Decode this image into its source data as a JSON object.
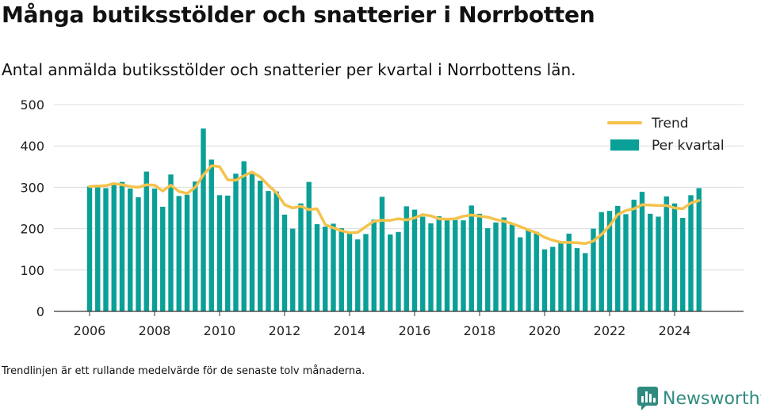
{
  "header": {
    "title": "Många butiksstölder och snatterier i Norrbotten",
    "subtitle": "Antal anmälda butiksstölder och snatterier per kvartal i Norrbottens län."
  },
  "footer": {
    "note": "Trendlinjen är ett rullande medelvärde för de senaste tolv månaderna.",
    "brand": "Newsworthy"
  },
  "colors": {
    "bars": "#0aa098",
    "trend": "#f5c24c",
    "grid": "#dcdcdc",
    "axis": "#333333",
    "brand": "#2f8b80"
  },
  "chart_data": {
    "type": "bar",
    "x_start": "2006 Q1",
    "frequency": "quarterly",
    "x_ticks": [
      "2006",
      "2008",
      "2010",
      "2012",
      "2014",
      "2016",
      "2018",
      "2020",
      "2022",
      "2024"
    ],
    "ylim": [
      0,
      500
    ],
    "y_ticks": [
      0,
      100,
      200,
      300,
      400,
      500
    ],
    "grid": true,
    "legend_position": "top-right",
    "series": [
      {
        "name": "Per kvartal",
        "type": "bar",
        "values": [
          302,
          306,
          298,
          311,
          313,
          297,
          276,
          338,
          297,
          253,
          331,
          279,
          282,
          314,
          442,
          367,
          281,
          280,
          333,
          363,
          332,
          316,
          291,
          290,
          234,
          200,
          261,
          313,
          211,
          205,
          212,
          201,
          193,
          174,
          187,
          222,
          277,
          186,
          192,
          254,
          246,
          229,
          213,
          230,
          225,
          221,
          220,
          256,
          236,
          201,
          215,
          227,
          210,
          179,
          196,
          192,
          150,
          156,
          170,
          188,
          153,
          141,
          200,
          240,
          243,
          255,
          235,
          270,
          289,
          236,
          229,
          278,
          261,
          226,
          281,
          298
        ]
      },
      {
        "name": "Trend",
        "type": "line",
        "values": [
          302,
          303,
          304,
          309,
          306,
          302,
          300,
          306,
          305,
          291,
          305,
          290,
          285,
          300,
          330,
          352,
          350,
          318,
          317,
          328,
          337,
          325,
          305,
          287,
          258,
          250,
          254,
          246,
          248,
          210,
          202,
          195,
          190,
          191,
          205,
          218,
          220,
          220,
          224,
          221,
          226,
          234,
          231,
          224,
          223,
          224,
          230,
          233,
          230,
          228,
          222,
          218,
          212,
          205,
          197,
          190,
          179,
          172,
          167,
          167,
          166,
          164,
          170,
          186,
          207,
          234,
          244,
          248,
          258,
          257,
          256,
          256,
          250,
          248,
          262,
          268
        ]
      }
    ]
  }
}
